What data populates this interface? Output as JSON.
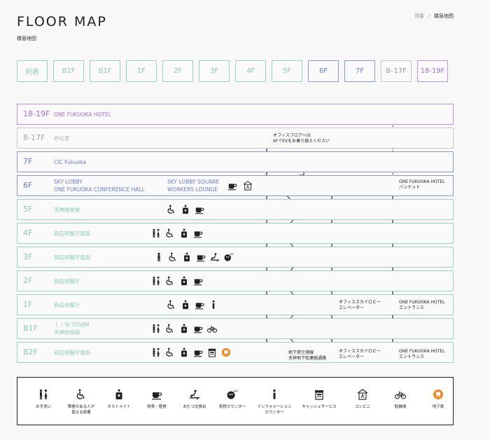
{
  "page": {
    "title": "FLOOR MAP",
    "subtitle": "楼层地图",
    "breadcrumb": {
      "home": "顶層",
      "separator": "/",
      "current": "楼层地图"
    }
  },
  "tabs": [
    {
      "label": "列表",
      "color": "green"
    },
    {
      "label": "B2F",
      "color": "green"
    },
    {
      "label": "B1F",
      "color": "green"
    },
    {
      "label": "1F",
      "color": "green"
    },
    {
      "label": "2F",
      "color": "green"
    },
    {
      "label": "3F",
      "color": "green"
    },
    {
      "label": "4F",
      "color": "green"
    },
    {
      "label": "5F",
      "color": "green"
    },
    {
      "label": "6F",
      "color": "blue"
    },
    {
      "label": "7F",
      "color": "blue"
    },
    {
      "label": "8–17F",
      "color": "gray"
    },
    {
      "label": "18-19F",
      "color": "purple"
    }
  ],
  "floors": [
    {
      "label": "18-19F",
      "name": [
        "ONE FUKUOKA HOTEL"
      ],
      "color": "purple",
      "icons": []
    },
    {
      "label": "8-17F",
      "name": [
        "办公室"
      ],
      "color": "gray",
      "icons": []
    },
    {
      "label": "7F",
      "name": [
        "CIC Fukuoka"
      ],
      "color": "blue",
      "icons": []
    },
    {
      "label": "6F",
      "name": [
        "SKY LOBBY",
        "ONE FUKUOKA CONFERENCE HALL"
      ],
      "name2": [
        "SKY LOBBY SQUARE",
        "WORKERS LOUNGE"
      ],
      "color": "blue",
      "icons": [
        "cafe-icon",
        "convenience-store-icon"
      ]
    },
    {
      "label": "5F",
      "name": [
        "天神福食堂"
      ],
      "color": "green",
      "icons": [
        "accessible-restroom-icon",
        "ostomate-icon",
        "cafe-icon"
      ]
    },
    {
      "label": "4F",
      "name": [
        "商店和餐厅服务"
      ],
      "color": "green",
      "icons": [
        "restroom-icon",
        "accessible-restroom-icon",
        "ostomate-icon",
        "cafe-icon"
      ]
    },
    {
      "label": "3F",
      "name": [
        "商店和餐厅服务"
      ],
      "color": "green",
      "icons": [
        "restroom-male-icon",
        "accessible-restroom-icon",
        "ostomate-icon",
        "cafe-icon",
        "diaper-change-icon",
        "tax-free-counter-icon"
      ]
    },
    {
      "label": "2F",
      "name": [
        "商店和餐厅"
      ],
      "color": "green",
      "icons": [
        "restroom-icon",
        "accessible-restroom-icon",
        "ostomate-icon",
        "cafe-icon"
      ]
    },
    {
      "label": "1F",
      "name": [
        "商店和餐厅"
      ],
      "color": "green",
      "icons": [
        "accessible-restroom-icon",
        "ostomate-icon",
        "cafe-icon",
        "information-icon"
      ]
    },
    {
      "label": "B1F",
      "name": [
        "ｉｉTo TENJIN",
        "天神的骑街"
      ],
      "color": "green",
      "icons": [
        "restroom-icon",
        "accessible-restroom-icon",
        "ostomate-icon",
        "cafe-icon",
        "bicycle-parking-icon"
      ]
    },
    {
      "label": "B2F",
      "name": [
        "商店和餐厅服务"
      ],
      "color": "green",
      "icons": [
        "restroom-icon",
        "accessible-restroom-icon",
        "ostomate-icon",
        "cafe-icon",
        "atm-icon",
        "subway-icon"
      ]
    }
  ],
  "notes": {
    "office_floor": [
      "オフィスフロアへは",
      "6FでEVをお乗り換えください"
    ],
    "hotel_banquet": [
      "ONE FUKUOKA HOTEL",
      "バンケット"
    ],
    "office_sky_lobby_1f": [
      "オフィススカイロビー",
      "エレベーター"
    ],
    "hotel_entrance_1f": [
      "ONE FUKUOKA HOTEL",
      "エントランス"
    ],
    "subway_passage": [
      "地下鉄空港線",
      "天神地下街連絡通路"
    ],
    "office_sky_lobby_b2f": [
      "オフィススカイロビー",
      "エレベーター"
    ],
    "hotel_entrance_b2f": [
      "ONE FUKUOKA HOTEL",
      "エントランス"
    ]
  },
  "legend": [
    {
      "icon": "restroom-icon",
      "label": [
        "お手洗い"
      ]
    },
    {
      "icon": "accessible-restroom-icon",
      "label": [
        "障害のある人が",
        "使える設備"
      ]
    },
    {
      "icon": "ostomate-icon",
      "label": [
        "オストメイト"
      ]
    },
    {
      "icon": "cafe-icon",
      "label": [
        "喫茶・軽食"
      ]
    },
    {
      "icon": "diaper-change-icon",
      "label": [
        "おむつ交換台"
      ]
    },
    {
      "icon": "tax-free-counter-icon",
      "label": [
        "免税カウンター"
      ]
    },
    {
      "icon": "information-icon",
      "label": [
        "インフォメーション",
        "カウンター"
      ]
    },
    {
      "icon": "atm-icon",
      "label": [
        "キャッシュサービス"
      ]
    },
    {
      "icon": "convenience-store-icon",
      "label": [
        "コンビニ"
      ]
    },
    {
      "icon": "bicycle-parking-icon",
      "label": [
        "駐輪場"
      ]
    },
    {
      "icon": "subway-icon",
      "label": [
        "地下鉄"
      ]
    }
  ],
  "colors": {
    "green": "#9bd3c0",
    "blue": "#8a97e0",
    "gray": "#c8c8c8",
    "purple": "#b891e8",
    "subway": "#f08a24"
  }
}
